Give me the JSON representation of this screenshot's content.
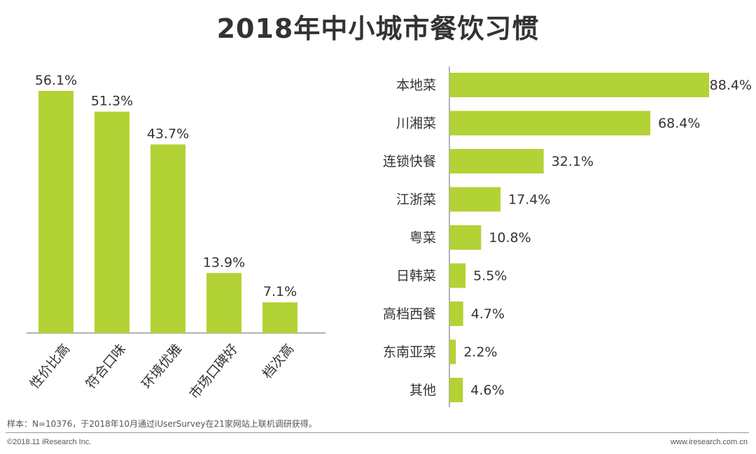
{
  "title": "2018年中小城市餐饮习惯",
  "accent_color": "#b2d235",
  "chart_data": [
    {
      "type": "bar",
      "orientation": "vertical",
      "categories": [
        "性价比高",
        "符合口味",
        "环境优雅",
        "市场口碑好",
        "档次高"
      ],
      "values": [
        56.1,
        51.3,
        43.7,
        13.9,
        7.1
      ],
      "labels": [
        "56.1%",
        "51.3%",
        "43.7%",
        "13.9%",
        "7.1%"
      ],
      "unit": "%",
      "ylim": [
        0,
        60
      ]
    },
    {
      "type": "bar",
      "orientation": "horizontal",
      "categories": [
        "本地菜",
        "川湘菜",
        "连锁快餐",
        "江浙菜",
        "粤菜",
        "日韩菜",
        "高档西餐",
        "东南亚菜",
        "其他"
      ],
      "values": [
        88.4,
        68.4,
        32.1,
        17.4,
        10.8,
        5.5,
        4.7,
        2.2,
        4.6
      ],
      "labels": [
        "88.4%",
        "68.4%",
        "32.1%",
        "17.4%",
        "10.8%",
        "5.5%",
        "4.7%",
        "2.2%",
        "4.6%"
      ],
      "unit": "%",
      "xlim": [
        0,
        88.4
      ]
    }
  ],
  "footer": {
    "note": "样本：N=10376，于2018年10月通过iUserSurvey在21家网站上联机调研获得。",
    "copyright": "©2018.11 iResearch Inc.",
    "website": "www.iresearch.com.cn"
  }
}
